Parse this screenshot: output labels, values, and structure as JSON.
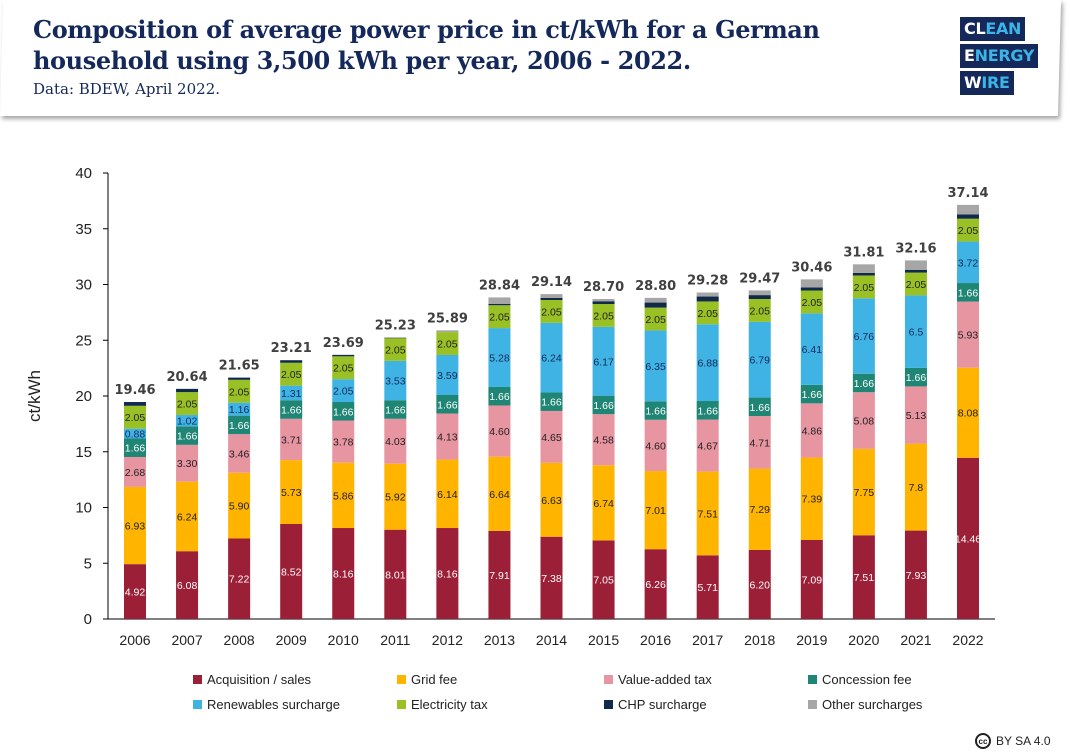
{
  "header": {
    "title": "Composition of average power price in ct/kWh for a German household using 3,500 kWh per year, 2006 - 2022.",
    "subtitle": "Data: BDEW, April 2022."
  },
  "logo": {
    "rows": [
      {
        "first": "CL",
        "rest": "EAN"
      },
      {
        "first": "E",
        "rest": "NERGY"
      },
      {
        "first": "W",
        "rest": "IRE"
      }
    ]
  },
  "license": {
    "icon": "cc-icon",
    "text": "BY SA 4.0"
  },
  "chart_data": {
    "type": "bar",
    "stacked": true,
    "title": "Composition of average power price in ct/kWh for a German household using 3,500 kWh per year, 2006 - 2022.",
    "xlabel": "",
    "ylabel": "ct/kWh",
    "ylim": [
      0,
      40
    ],
    "yticks": [
      0,
      5,
      10,
      15,
      20,
      25,
      30,
      35,
      40
    ],
    "grid": false,
    "legend_position": "bottom",
    "categories": [
      "2006",
      "2007",
      "2008",
      "2009",
      "2010",
      "2011",
      "2012",
      "2013",
      "2014",
      "2015",
      "2016",
      "2017",
      "2018",
      "2019",
      "2020",
      "2021",
      "2022"
    ],
    "totals": [
      19.46,
      20.64,
      21.65,
      23.21,
      23.69,
      25.23,
      25.89,
      28.84,
      29.14,
      28.7,
      28.8,
      29.28,
      29.47,
      30.46,
      31.81,
      32.16,
      37.14
    ],
    "total_labels": [
      "19.46",
      "20.64",
      "21.65",
      "23.21",
      "23.69",
      "25.23",
      "25.89",
      "28.84",
      "29.14",
      "28.70",
      "28.80",
      "29.28",
      "29.47",
      "30.46",
      "31.81",
      "32.16",
      "37.14"
    ],
    "series": [
      {
        "name": "Acquisition / sales",
        "color": "#9b1f37",
        "label_color": "#ffffff",
        "values": [
          4.92,
          6.08,
          7.22,
          8.52,
          8.16,
          8.01,
          8.16,
          7.91,
          7.38,
          7.05,
          6.26,
          5.71,
          6.2,
          7.09,
          7.51,
          7.93,
          14.46
        ],
        "labels": [
          "4.92",
          "6.08",
          "7.22",
          "8.52",
          "8.16",
          "8.01",
          "8.16",
          "7.91",
          "7.38",
          "7.05",
          "6.26",
          "5.71",
          "6.20",
          "7.09",
          "7.51",
          "7.93",
          "14.46"
        ]
      },
      {
        "name": "Grid fee",
        "color": "#ffb400",
        "label_color": "#222222",
        "values": [
          6.93,
          6.24,
          5.9,
          5.73,
          5.86,
          5.92,
          6.14,
          6.64,
          6.63,
          6.74,
          7.01,
          7.51,
          7.29,
          7.39,
          7.75,
          7.8,
          8.08
        ],
        "labels": [
          "6.93",
          "6.24",
          "5.90",
          "5.73",
          "5.86",
          "5.92",
          "6.14",
          "6.64",
          "6.63",
          "6.74",
          "7.01",
          "7.51",
          "7.29",
          "7.39",
          "7.75",
          "7.8",
          "8.08"
        ]
      },
      {
        "name": "Value-added tax",
        "color": "#e895a2",
        "label_color": "#222222",
        "values": [
          2.68,
          3.3,
          3.46,
          3.71,
          3.78,
          4.03,
          4.13,
          4.6,
          4.65,
          4.58,
          4.6,
          4.67,
          4.71,
          4.86,
          5.08,
          5.13,
          5.93
        ],
        "labels": [
          "2.68",
          "3.30",
          "3.46",
          "3.71",
          "3.78",
          "4.03",
          "4.13",
          "4.60",
          "4.65",
          "4.58",
          "4.60",
          "4.67",
          "4.71",
          "4.86",
          "5.08",
          "5.13",
          "5.93"
        ]
      },
      {
        "name": "Concession fee",
        "color": "#1f8574",
        "label_color": "#ffffff",
        "values": [
          1.66,
          1.66,
          1.66,
          1.66,
          1.66,
          1.66,
          1.66,
          1.66,
          1.66,
          1.66,
          1.66,
          1.66,
          1.66,
          1.66,
          1.66,
          1.66,
          1.66
        ],
        "labels": [
          "1.66",
          "1.66",
          "1.66",
          "1.66",
          "1.66",
          "1.66",
          "1.66",
          "1.66",
          "1.66",
          "1.66",
          "1.66",
          "1.66",
          "1.66",
          "1.66",
          "1.66",
          "1.66",
          "1.66"
        ]
      },
      {
        "name": "Renewables surcharge",
        "color": "#3fb4e4",
        "label_color": "#14285a",
        "values": [
          0.88,
          1.02,
          1.16,
          1.31,
          2.05,
          3.53,
          3.59,
          5.28,
          6.24,
          6.17,
          6.35,
          6.88,
          6.79,
          6.41,
          6.76,
          6.5,
          3.72
        ],
        "labels": [
          "0.88",
          "1.02",
          "1.16",
          "1.31",
          "2.05",
          "3.53",
          "3.59",
          "5.28",
          "6.24",
          "6.17",
          "6.35",
          "6.88",
          "6.79",
          "6.41",
          "6.76",
          "6.5",
          "3.72"
        ]
      },
      {
        "name": "Electricity tax",
        "color": "#99c024",
        "label_color": "#222222",
        "values": [
          2.05,
          2.05,
          2.05,
          2.05,
          2.05,
          2.05,
          2.05,
          2.05,
          2.05,
          2.05,
          2.05,
          2.05,
          2.05,
          2.05,
          2.05,
          2.05,
          2.05
        ],
        "labels": [
          "2.05",
          "2.05",
          "2.05",
          "2.05",
          "2.05",
          "2.05",
          "2.05",
          "2.05",
          "2.05",
          "2.05",
          "2.05",
          "2.05",
          "2.05",
          "2.05",
          "2.05",
          "2.05",
          "2.05"
        ]
      },
      {
        "name": "CHP surcharge",
        "color": "#102a4c",
        "label_color": "#ffffff",
        "values": [
          0.34,
          0.29,
          0.2,
          0.23,
          0.13,
          0.03,
          0.0,
          0.13,
          0.18,
          0.25,
          0.45,
          0.44,
          0.35,
          0.28,
          0.23,
          0.25,
          0.38
        ],
        "labels": []
      },
      {
        "name": "Other surcharges",
        "color": "#a6a6a6",
        "label_color": "#222222",
        "values": [
          0.0,
          0.0,
          0.0,
          0.0,
          0.0,
          0.0,
          0.16,
          0.57,
          0.35,
          0.2,
          0.42,
          0.36,
          0.42,
          0.72,
          0.77,
          0.84,
          0.86
        ],
        "labels": []
      }
    ]
  }
}
